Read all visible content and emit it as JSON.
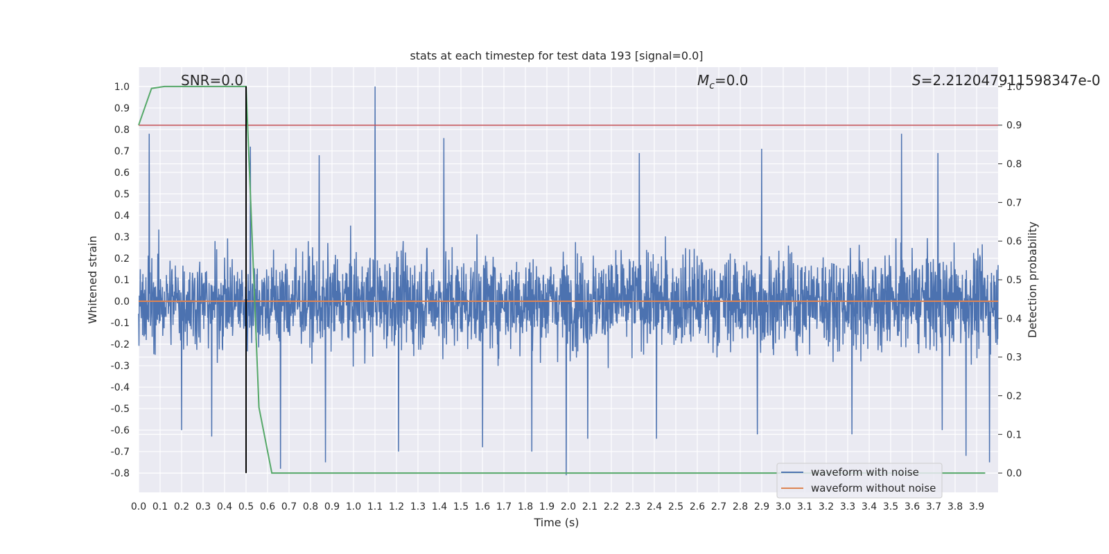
{
  "chart_data": {
    "type": "line",
    "title": "stats at each timestep for test data 193 [signal=0.0]",
    "xlabel": "Time (s)",
    "ylabel": "Whitened strain",
    "ylabel_right": "Detection probability",
    "xlim": [
      0.0,
      4.0
    ],
    "ylim": [
      -0.89,
      1.09
    ],
    "ylim_right": [
      -0.05,
      1.05
    ],
    "grid": true,
    "legend_position": "lower-right",
    "x_ticks": [
      "0.0",
      "0.1",
      "0.2",
      "0.3",
      "0.4",
      "0.5",
      "0.6",
      "0.7",
      "0.8",
      "0.9",
      "1.0",
      "1.1",
      "1.2",
      "1.3",
      "1.4",
      "1.5",
      "1.6",
      "1.7",
      "1.8",
      "1.9",
      "2.0",
      "2.1",
      "2.2",
      "2.3",
      "2.4",
      "2.5",
      "2.6",
      "2.7",
      "2.8",
      "2.9",
      "3.0",
      "3.1",
      "3.2",
      "3.3",
      "3.4",
      "3.5",
      "3.6",
      "3.7",
      "3.8",
      "3.9"
    ],
    "y_ticks": [
      "1.0",
      "0.9",
      "0.8",
      "0.7",
      "0.6",
      "0.5",
      "0.4",
      "0.3",
      "0.2",
      "0.1",
      "0.0",
      "-0.1",
      "-0.2",
      "-0.3",
      "-0.4",
      "-0.5",
      "-0.6",
      "-0.7",
      "-0.8"
    ],
    "y_ticks_right": [
      "1.0",
      "0.9",
      "0.8",
      "0.7",
      "0.6",
      "0.5",
      "0.4",
      "0.3",
      "0.2",
      "0.1",
      "0.0"
    ],
    "annotations": {
      "snr": "SNR=0.0",
      "mc_symbol": "M",
      "mc_sub": "c",
      "mc_value": "=0.0",
      "s_symbol": "S",
      "s_value": "=2.212047911598347e-0"
    },
    "series": [
      {
        "name": "waveform with noise",
        "color": "#4c72b0",
        "axis": "left",
        "description_key": "noise",
        "noise_amplitude_typical": 0.25,
        "peaks": [
          {
            "x": 0.05,
            "y": 0.78
          },
          {
            "x": 0.2,
            "y": -0.6
          },
          {
            "x": 0.34,
            "y": -0.63
          },
          {
            "x": 0.52,
            "y": 0.72
          },
          {
            "x": 0.66,
            "y": -0.78
          },
          {
            "x": 0.87,
            "y": -0.75
          },
          {
            "x": 0.84,
            "y": 0.68
          },
          {
            "x": 1.1,
            "y": 1.0
          },
          {
            "x": 1.21,
            "y": -0.7
          },
          {
            "x": 1.42,
            "y": 0.76
          },
          {
            "x": 1.6,
            "y": -0.68
          },
          {
            "x": 1.83,
            "y": -0.7
          },
          {
            "x": 1.99,
            "y": -0.81
          },
          {
            "x": 2.09,
            "y": -0.64
          },
          {
            "x": 2.33,
            "y": 0.69
          },
          {
            "x": 2.41,
            "y": -0.64
          },
          {
            "x": 2.9,
            "y": 0.71
          },
          {
            "x": 2.88,
            "y": -0.62
          },
          {
            "x": 3.32,
            "y": -0.62
          },
          {
            "x": 3.55,
            "y": 0.78
          },
          {
            "x": 3.72,
            "y": 0.69
          },
          {
            "x": 3.74,
            "y": -0.6
          },
          {
            "x": 3.85,
            "y": -0.72
          },
          {
            "x": 3.96,
            "y": -0.75
          }
        ]
      },
      {
        "name": "waveform without noise",
        "color": "#dd8452",
        "axis": "left",
        "x": [
          0.0,
          4.0
        ],
        "y": [
          0.0,
          0.0
        ]
      },
      {
        "name": "",
        "color": "#55a868",
        "axis": "right",
        "x": [
          0.0,
          0.06,
          0.12,
          0.5,
          0.56,
          0.62,
          3.94
        ],
        "y": [
          0.9,
          0.995,
          1.0,
          1.0,
          0.17,
          0.0,
          0.0
        ]
      }
    ],
    "threshold": {
      "value": 0.9,
      "axis": "right",
      "color": "#c44e52"
    },
    "marker_line": {
      "x": 0.5,
      "color": "#000000"
    }
  }
}
